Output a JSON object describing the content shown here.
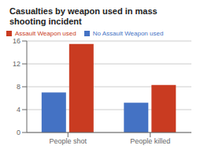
{
  "chart_data": {
    "type": "bar",
    "title": "Casualties by weapon used in mass\nshooting incident",
    "categories": [
      "People shot",
      "People killed"
    ],
    "series": [
      {
        "name": "No Assault Weapon used",
        "color": "#4472C4",
        "values": [
          7.0,
          5.2
        ]
      },
      {
        "name": "Assault Weapon used",
        "color": "#C93B21",
        "values": [
          15.5,
          8.3
        ]
      }
    ],
    "ylim": [
      0,
      16
    ],
    "yticks": [
      0,
      4,
      8,
      12,
      16
    ],
    "grid": true,
    "legend": "upper left"
  }
}
